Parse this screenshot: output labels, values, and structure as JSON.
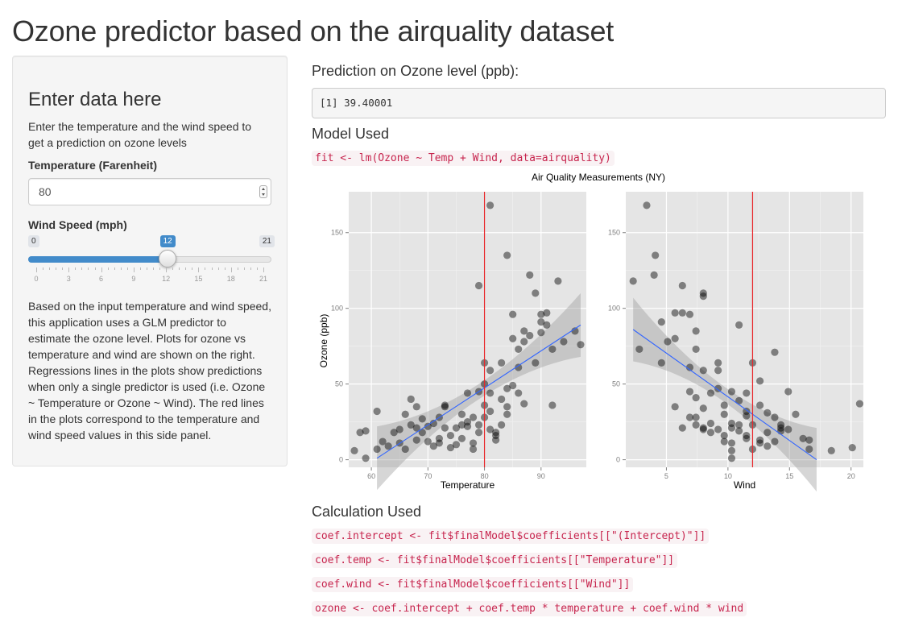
{
  "page": {
    "title": "Ozone predictor based on the airquality dataset"
  },
  "sidebar": {
    "heading": "Enter data here",
    "intro": "Enter the temperature and the wind speed to get a prediction on ozone levels",
    "temperature": {
      "label": "Temperature (Farenheit)",
      "value": "80"
    },
    "wind": {
      "label": "Wind Speed (mph)",
      "min": 0,
      "max": 21,
      "value": 12,
      "min_label": "0",
      "max_label": "21",
      "value_label": "12",
      "tick_labels": [
        "0",
        "3",
        "6",
        "9",
        "12",
        "15",
        "18",
        "21"
      ]
    },
    "description": "Based on the input temperature and wind speed, this application uses a GLM predictor to estimate the ozone level. Plots for ozone vs temperature and wind are shown on the right. Regressions lines in the plots show predictions when only a single predictor is used (i.e. Ozone ~ Temperature or Ozone ~ Wind). The red lines in the plots correspond to the temperature and wind speed values in this side panel."
  },
  "main": {
    "prediction_heading": "Prediction on Ozone level (ppb):",
    "prediction_output": "[1] 39.40001",
    "model_heading": "Model Used",
    "model_code": "fit <- lm(Ozone ~ Temp + Wind, data=airquality)",
    "calc_heading": "Calculation Used",
    "calc_lines": [
      "coef.intercept <- fit$finalModel$coefficients[[\"(Intercept)\"]]",
      "coef.temp <- fit$finalModel$coefficients[[\"Temperature\"]]",
      "coef.wind <- fit$finalModel$coefficients[[\"Wind\"]]",
      "ozone <- coef.intercept + coef.temp * temperature + coef.wind * wind"
    ]
  },
  "colors": {
    "accent": "#428bca",
    "code_text": "#c7254e",
    "code_bg": "#f9f2f4",
    "panel_bg": "#e5e5e5",
    "vline": "#e8272b",
    "fit_line": "#3366ff"
  },
  "chart_data": {
    "title": "Air Quality Measurements (NY)",
    "ylabel": "Ozone (ppb)",
    "ylim": [
      -5,
      177
    ],
    "yticks": [
      0,
      50,
      100,
      150
    ],
    "grid": true,
    "panels": [
      {
        "type": "scatter",
        "xlabel": "Temperature",
        "xlim": [
          56,
          98
        ],
        "xticks": [
          60,
          70,
          80,
          90
        ],
        "vline": 80,
        "fit": {
          "x": [
            61,
            97
          ],
          "y": [
            1,
            89
          ]
        },
        "points": [
          [
            57,
            6
          ],
          [
            58,
            18
          ],
          [
            59,
            19
          ],
          [
            59,
            1
          ],
          [
            61,
            32
          ],
          [
            61,
            7
          ],
          [
            62,
            12
          ],
          [
            63,
            9
          ],
          [
            64,
            18
          ],
          [
            65,
            20
          ],
          [
            65,
            11
          ],
          [
            66,
            30
          ],
          [
            66,
            7
          ],
          [
            67,
            40
          ],
          [
            67,
            23
          ],
          [
            68,
            21
          ],
          [
            68,
            13
          ],
          [
            68,
            35
          ],
          [
            69,
            18
          ],
          [
            69,
            27
          ],
          [
            70,
            22
          ],
          [
            70,
            12
          ],
          [
            71,
            9
          ],
          [
            71,
            24
          ],
          [
            72,
            28
          ],
          [
            72,
            14
          ],
          [
            72,
            11
          ],
          [
            73,
            36
          ],
          [
            73,
            35
          ],
          [
            73,
            21
          ],
          [
            74,
            16
          ],
          [
            74,
            8
          ],
          [
            75,
            10
          ],
          [
            75,
            21
          ],
          [
            76,
            23
          ],
          [
            76,
            30
          ],
          [
            76,
            14
          ],
          [
            77,
            22
          ],
          [
            77,
            25
          ],
          [
            77,
            44
          ],
          [
            78,
            28
          ],
          [
            78,
            11
          ],
          [
            78,
            7
          ],
          [
            79,
            45
          ],
          [
            79,
            18
          ],
          [
            79,
            23
          ],
          [
            79,
            115
          ],
          [
            80,
            64
          ],
          [
            80,
            36
          ],
          [
            80,
            50
          ],
          [
            80,
            28
          ],
          [
            81,
            32
          ],
          [
            81,
            168
          ],
          [
            81,
            44
          ],
          [
            81,
            59
          ],
          [
            81,
            20
          ],
          [
            82,
            13
          ],
          [
            82,
            16
          ],
          [
            82,
            18
          ],
          [
            83,
            64
          ],
          [
            83,
            40
          ],
          [
            83,
            23
          ],
          [
            84,
            135
          ],
          [
            84,
            47
          ],
          [
            84,
            35
          ],
          [
            84,
            30
          ],
          [
            85,
            96
          ],
          [
            85,
            80
          ],
          [
            85,
            49
          ],
          [
            86,
            73
          ],
          [
            86,
            44
          ],
          [
            86,
            61
          ],
          [
            87,
            85
          ],
          [
            87,
            78
          ],
          [
            87,
            37
          ],
          [
            88,
            122
          ],
          [
            88,
            82
          ],
          [
            89,
            110
          ],
          [
            89,
            64
          ],
          [
            90,
            96
          ],
          [
            90,
            84
          ],
          [
            90,
            91
          ],
          [
            91,
            97
          ],
          [
            91,
            89
          ],
          [
            92,
            73
          ],
          [
            93,
            118
          ],
          [
            94,
            78
          ],
          [
            96,
            85
          ],
          [
            97,
            76
          ],
          [
            92,
            36
          ]
        ]
      },
      {
        "type": "scatter",
        "xlabel": "Wind",
        "xlim": [
          1.7,
          21
        ],
        "xticks": [
          5,
          10,
          15,
          20
        ],
        "vline": 12,
        "fit": {
          "x": [
            2.3,
            17.2
          ],
          "y": [
            86,
            0
          ]
        },
        "points": [
          [
            2.3,
            118
          ],
          [
            2.8,
            73
          ],
          [
            3.4,
            168
          ],
          [
            4.0,
            122
          ],
          [
            4.1,
            135
          ],
          [
            4.6,
            91
          ],
          [
            4.6,
            64
          ],
          [
            5.1,
            78
          ],
          [
            5.7,
            97
          ],
          [
            5.7,
            80
          ],
          [
            6.3,
            97
          ],
          [
            6.3,
            115
          ],
          [
            6.9,
            96
          ],
          [
            6.9,
            61
          ],
          [
            6.9,
            45
          ],
          [
            7.4,
            85
          ],
          [
            7.4,
            28
          ],
          [
            7.4,
            73
          ],
          [
            7.4,
            41
          ],
          [
            8.0,
            110
          ],
          [
            8.0,
            108
          ],
          [
            8.0,
            59
          ],
          [
            8.0,
            34
          ],
          [
            8.0,
            21
          ],
          [
            8.6,
            44
          ],
          [
            8.6,
            18
          ],
          [
            9.2,
            47
          ],
          [
            9.2,
            64
          ],
          [
            9.2,
            20
          ],
          [
            9.7,
            12
          ],
          [
            9.7,
            30
          ],
          [
            9.7,
            36
          ],
          [
            10.3,
            11
          ],
          [
            10.3,
            21
          ],
          [
            10.3,
            24
          ],
          [
            10.3,
            6
          ],
          [
            10.3,
            1
          ],
          [
            10.9,
            23
          ],
          [
            10.9,
            89
          ],
          [
            10.9,
            39
          ],
          [
            11.5,
            32
          ],
          [
            11.5,
            16
          ],
          [
            11.5,
            14
          ],
          [
            11.5,
            44
          ],
          [
            12.0,
            64
          ],
          [
            12.0,
            23
          ],
          [
            12.0,
            7
          ],
          [
            12.6,
            52
          ],
          [
            12.6,
            36
          ],
          [
            12.6,
            13
          ],
          [
            13.2,
            18
          ],
          [
            13.2,
            9
          ],
          [
            13.8,
            12
          ],
          [
            13.8,
            28
          ],
          [
            13.8,
            71
          ],
          [
            14.3,
            23
          ],
          [
            14.3,
            21
          ],
          [
            14.9,
            45
          ],
          [
            14.9,
            20
          ],
          [
            15.5,
            30
          ],
          [
            16.1,
            14
          ],
          [
            16.6,
            13
          ],
          [
            18.4,
            6
          ],
          [
            20.1,
            8
          ],
          [
            20.7,
            37
          ],
          [
            6.9,
            28
          ],
          [
            8.6,
            24
          ],
          [
            10.9,
            19
          ],
          [
            11.5,
            29
          ],
          [
            7.4,
            23
          ],
          [
            9.2,
            59
          ],
          [
            5.7,
            35
          ],
          [
            12.6,
            11
          ],
          [
            14.3,
            19
          ],
          [
            16.6,
            7
          ],
          [
            9.7,
            16
          ],
          [
            8.0,
            20
          ],
          [
            13.2,
            31
          ],
          [
            10.3,
            45
          ],
          [
            6.3,
            21
          ]
        ]
      }
    ]
  }
}
